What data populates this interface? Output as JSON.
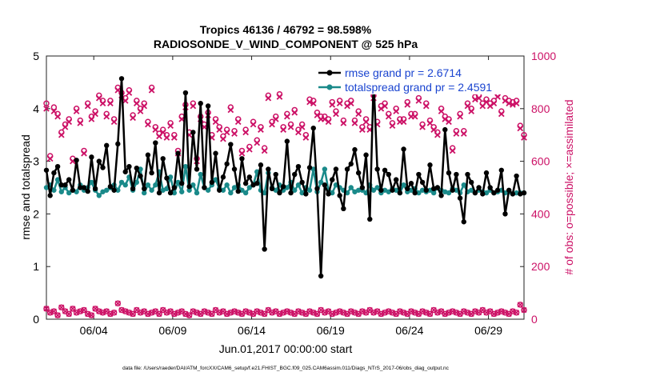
{
  "chart_data": {
    "type": "line",
    "title": "Tropics 46136 / 46792 = 98.598%",
    "subtitle": "RADIOSONDE_V_WIND_COMPONENT @ 525 hPa",
    "xlabel": "Jun.01,2017 00:00:00 start",
    "ylabel": "rmse and totalspread",
    "ylabel_right": "# of obs: o=possible; ×=assimilated",
    "footnote": "data file: /Users/raeder/DAI/ATM_forcXX/CAM6_setup/f.e21.FHIST_BGC.f09_025.CAM6assim.011/Diags_NTrS_2017-06/obs_diag_output.nc",
    "xlim": [
      1.0,
      31.25
    ],
    "ylim": [
      0,
      5
    ],
    "ylim_right": [
      0,
      1000
    ],
    "xticks": [
      4,
      9,
      14,
      19,
      24,
      29
    ],
    "xtick_labels": [
      "06/04",
      "06/09",
      "06/14",
      "06/19",
      "06/24",
      "06/29"
    ],
    "yticks": [
      0,
      1,
      2,
      3,
      4,
      5
    ],
    "ytick_labels": [
      "0",
      "1",
      "2",
      "3",
      "4",
      "5"
    ],
    "yticks_right": [
      0,
      200,
      400,
      600,
      800,
      1000
    ],
    "ytick_labels_right": [
      "0",
      "200",
      "400",
      "600",
      "800",
      "1000"
    ],
    "legend": [
      "rmse grand pr = 2.6714",
      "totalspread grand pr = 2.4591"
    ],
    "colors": {
      "rmse": "#000000",
      "spread": "#1a8a8a",
      "obs": "#cc1166",
      "legend_text": "#1a44d0"
    },
    "series": [
      {
        "name": "rmse",
        "values": [
          2.83,
          2.35,
          2.78,
          2.9,
          2.55,
          2.55,
          2.65,
          2.45,
          3.02,
          2.5,
          2.5,
          2.43,
          3.08,
          2.48,
          3.0,
          2.88,
          3.3,
          2.52,
          2.45,
          3.33,
          4.57,
          2.8,
          2.9,
          2.48,
          2.87,
          2.72,
          2.48,
          3.12,
          2.78,
          3.35,
          2.4,
          3.05,
          2.68,
          2.4,
          2.5,
          3.15,
          2.58,
          4.3,
          2.52,
          3.55,
          2.85,
          4.1,
          2.5,
          4.05,
          2.6,
          3.15,
          2.45,
          2.7,
          2.95,
          3.32,
          2.85,
          2.43,
          3.05,
          2.58,
          2.7,
          2.55,
          2.58,
          2.93,
          1.33,
          2.85,
          2.48,
          2.75,
          2.4,
          2.52,
          3.38,
          2.4,
          2.75,
          2.9,
          2.6,
          2.38,
          2.88,
          3.63,
          2.48,
          0.82,
          2.55,
          2.38,
          2.65,
          2.85,
          2.35,
          2.1,
          2.85,
          2.95,
          3.22,
          2.78,
          2.5,
          3.12,
          1.9,
          4.55,
          2.85,
          2.45,
          2.83,
          2.75,
          2.45,
          2.65,
          2.4,
          3.23,
          2.48,
          2.58,
          2.4,
          2.75,
          2.6,
          2.45,
          2.93,
          2.48,
          2.5,
          2.35,
          3.6,
          2.78,
          2.45,
          2.75,
          2.3,
          1.85,
          2.75,
          2.6,
          2.4,
          2.5,
          2.38,
          2.78,
          2.5,
          2.4,
          2.45,
          2.83,
          2.0,
          2.45,
          2.38,
          2.72,
          2.38,
          2.4
        ]
      },
      {
        "name": "totalspread",
        "values": [
          2.5,
          2.55,
          2.45,
          2.65,
          2.42,
          2.5,
          2.4,
          2.45,
          2.42,
          2.55,
          2.45,
          2.5,
          2.6,
          2.45,
          2.35,
          2.42,
          2.45,
          2.5,
          2.55,
          2.45,
          2.6,
          2.55,
          2.7,
          2.45,
          2.6,
          2.85,
          2.4,
          2.55,
          2.45,
          2.55,
          2.8,
          2.45,
          2.48,
          2.7,
          2.4,
          2.6,
          2.42,
          2.9,
          2.45,
          2.55,
          2.4,
          2.75,
          2.5,
          2.45,
          2.55,
          2.65,
          2.48,
          2.45,
          2.55,
          2.4,
          2.5,
          2.55,
          2.45,
          2.4,
          2.5,
          2.55,
          2.8,
          2.45,
          2.4,
          2.78,
          2.5,
          2.45,
          2.55,
          2.45,
          2.5,
          2.6,
          2.45,
          2.55,
          2.4,
          2.5,
          2.45,
          2.85,
          2.42,
          2.6,
          2.85,
          2.45,
          2.4,
          2.55,
          2.5,
          2.45,
          2.4,
          2.5,
          2.42,
          2.45,
          2.45,
          2.4,
          2.55,
          2.45,
          2.5,
          2.4,
          2.45,
          2.42,
          2.48,
          2.45,
          2.4,
          2.55,
          2.42,
          2.45,
          2.48,
          2.4,
          2.45,
          2.42,
          2.45,
          2.4,
          2.5,
          2.45,
          2.42,
          2.4,
          2.48,
          2.45,
          2.4,
          2.55,
          2.42,
          2.45,
          2.4,
          2.45,
          2.42,
          2.4,
          2.45,
          2.4,
          2.42,
          2.45,
          2.4,
          2.42,
          2.38,
          2.4,
          2.4,
          2.4
        ]
      },
      {
        "name": "possible",
        "values": [
          820,
          620,
          805,
          780,
          710,
          740,
          760,
          610,
          800,
          755,
          640,
          820,
          770,
          790,
          850,
          830,
          780,
          830,
          760,
          880,
          860,
          840,
          870,
          775,
          830,
          800,
          820,
          750,
          880,
          730,
          705,
          720,
          700,
          745,
          700,
          640,
          770,
          815,
          710,
          820,
          610,
          770,
          740,
          785,
          700,
          760,
          730,
          695,
          720,
          805,
          715,
          760,
          640,
          720,
          655,
          750,
          680,
          730,
          650,
          850,
          750,
          770,
          855,
          730,
          780,
          740,
          795,
          720,
          740,
          700,
          835,
          830,
          785,
          770,
          770,
          760,
          825,
          790,
          830,
          755,
          820,
          830,
          755,
          790,
          730,
          760,
          730,
          850,
          750,
          810,
          820,
          780,
          745,
          800,
          760,
          760,
          825,
          780,
          780,
          840,
          740,
          820,
          755,
          730,
          710,
          800,
          770,
          760,
          650,
          715,
          780,
          715,
          820,
          800,
          845,
          850,
          820,
          835,
          820,
          830,
          855,
          790,
          840,
          830,
          825,
          830,
          735,
          700
        ]
      },
      {
        "name": "assimilated",
        "values": [
          800,
          610,
          790,
          770,
          700,
          730,
          750,
          600,
          790,
          745,
          630,
          810,
          760,
          780,
          840,
          820,
          770,
          820,
          750,
          870,
          850,
          830,
          860,
          765,
          820,
          790,
          810,
          740,
          870,
          720,
          695,
          710,
          690,
          735,
          690,
          630,
          760,
          805,
          700,
          810,
          600,
          760,
          730,
          775,
          690,
          750,
          720,
          685,
          710,
          795,
          705,
          750,
          630,
          710,
          645,
          740,
          670,
          720,
          640,
          840,
          740,
          760,
          845,
          720,
          770,
          730,
          785,
          710,
          730,
          690,
          825,
          820,
          775,
          760,
          760,
          750,
          815,
          780,
          820,
          745,
          810,
          820,
          745,
          780,
          720,
          750,
          720,
          840,
          740,
          800,
          810,
          770,
          735,
          790,
          750,
          750,
          815,
          770,
          770,
          830,
          730,
          810,
          745,
          720,
          700,
          790,
          760,
          750,
          640,
          705,
          770,
          705,
          810,
          790,
          835,
          840,
          810,
          825,
          810,
          820,
          845,
          780,
          830,
          820,
          815,
          820,
          725,
          690
        ]
      },
      {
        "name": "possible_low",
        "values": [
          40,
          25,
          30,
          15,
          45,
          30,
          20,
          40,
          25,
          30,
          35,
          20,
          15,
          40,
          30,
          25,
          30,
          20,
          25,
          60,
          35,
          30,
          25,
          20,
          35,
          25,
          30,
          20,
          25,
          30,
          20,
          35,
          25,
          30,
          20,
          25,
          30,
          20,
          15,
          30,
          25,
          20,
          30,
          25,
          20,
          35,
          25,
          30,
          20,
          25,
          30,
          25,
          20,
          30,
          25,
          20,
          30,
          25,
          20,
          35,
          25,
          30,
          20,
          25,
          30,
          25,
          20,
          30,
          25,
          20,
          30,
          25,
          20,
          35,
          25,
          30,
          20,
          25,
          30,
          25,
          20,
          30,
          25,
          20,
          30,
          25,
          35,
          25,
          30,
          20,
          25,
          30,
          25,
          20,
          30,
          25,
          20,
          30,
          25,
          20,
          30,
          25,
          20,
          35,
          25,
          30,
          20,
          25,
          30,
          25,
          20,
          30,
          25,
          20,
          30,
          25,
          35,
          25,
          30,
          20,
          25,
          30,
          25,
          20,
          30,
          25,
          55,
          35
        ]
      }
    ]
  }
}
